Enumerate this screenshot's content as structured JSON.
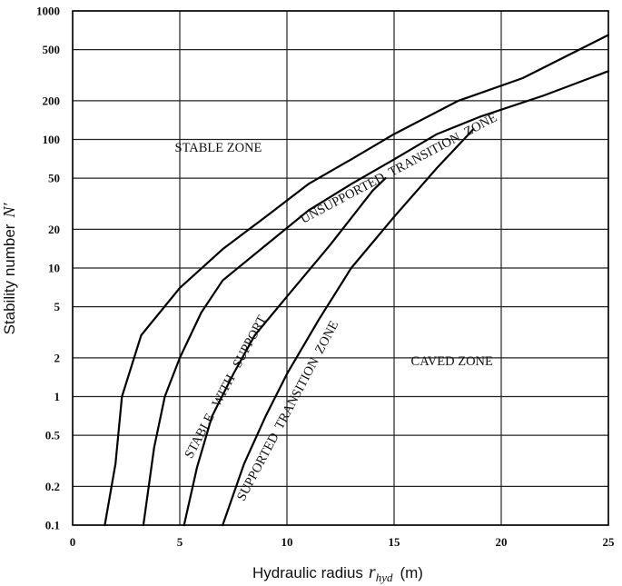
{
  "chart_data": {
    "type": "line",
    "title": "",
    "xlabel": "Hydraulic radius",
    "xlabel_symbol": "r",
    "xlabel_subscript": "hyd",
    "xlabel_unit": "(m)",
    "ylabel": "Stability number",
    "ylabel_symbol": "N′",
    "x_scale": "linear",
    "y_scale": "log",
    "xlim": [
      0,
      25
    ],
    "ylim": [
      0.1,
      1000
    ],
    "grid": true,
    "x_ticks": [
      0,
      5,
      10,
      15,
      20,
      25
    ],
    "y_ticks": [
      0.1,
      0.2,
      0.5,
      1,
      2,
      5,
      10,
      20,
      50,
      100,
      200,
      500,
      1000
    ],
    "x_tick_labels": [
      "0",
      "5",
      "10",
      "15",
      "20",
      "25"
    ],
    "y_tick_labels": [
      "0.1",
      "0.2",
      "0.5",
      "1",
      "2",
      "5",
      "10",
      "20",
      "50",
      "100",
      "200",
      "500",
      "1000"
    ],
    "series": [
      {
        "points": [
          [
            1.5,
            0.1
          ],
          [
            2.0,
            0.3
          ],
          [
            2.3,
            1
          ],
          [
            3.2,
            3
          ],
          [
            5.0,
            7
          ],
          [
            7.0,
            14
          ],
          [
            9.0,
            25
          ],
          [
            11.0,
            45
          ],
          [
            13.0,
            70
          ],
          [
            15.0,
            110
          ],
          [
            18.0,
            200
          ],
          [
            21.0,
            300
          ],
          [
            25.0,
            650
          ]
        ]
      },
      {
        "points": [
          [
            3.3,
            0.1
          ],
          [
            3.8,
            0.4
          ],
          [
            4.3,
            1
          ],
          [
            5.0,
            2
          ],
          [
            6.0,
            4.5
          ],
          [
            7.0,
            8
          ],
          [
            9.0,
            15
          ],
          [
            11.0,
            28
          ],
          [
            13.0,
            45
          ],
          [
            15.0,
            70
          ],
          [
            17.0,
            110
          ],
          [
            19.0,
            150
          ],
          [
            22.0,
            220
          ],
          [
            25.0,
            340
          ]
        ]
      },
      {
        "points": [
          [
            5.2,
            0.1
          ],
          [
            5.8,
            0.28
          ],
          [
            6.5,
            0.7
          ],
          [
            7.5,
            1.5
          ],
          [
            8.5,
            3
          ],
          [
            10.0,
            6
          ],
          [
            12.0,
            15
          ],
          [
            14.0,
            40
          ],
          [
            14.6,
            50
          ]
        ]
      },
      {
        "points": [
          [
            7.0,
            0.1
          ],
          [
            8.0,
            0.3
          ],
          [
            9.0,
            0.7
          ],
          [
            10.0,
            1.5
          ],
          [
            11.5,
            4
          ],
          [
            13.0,
            10
          ],
          [
            15.0,
            25
          ],
          [
            17.0,
            60
          ],
          [
            18.7,
            120
          ]
        ]
      }
    ],
    "annotations": [
      {
        "text": "STABLE ZONE",
        "x": 6.8,
        "y": 80,
        "angle": 0
      },
      {
        "text": "CAVED ZONE",
        "x": 17.7,
        "y": 1.75,
        "angle": 0
      },
      {
        "text": "UNSUPPORTED  TRANSITION  ZONE",
        "x": 15.3,
        "y": 56,
        "angle": -28
      },
      {
        "text": "STABLE   WITH   SUPPORT",
        "x": 7.3,
        "y": 1.15,
        "angle": -62
      },
      {
        "text": "SUPPORTED  TRANSITION  ZONE",
        "x": 10.2,
        "y": 0.75,
        "angle": -62
      }
    ]
  }
}
